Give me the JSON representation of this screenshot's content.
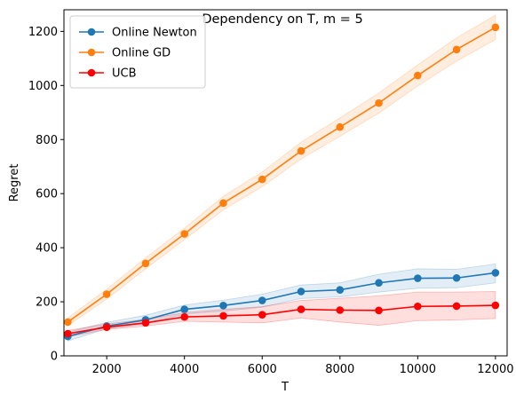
{
  "chart_data": {
    "type": "line",
    "title": "Dependency on T, m = 5",
    "xlabel": "T",
    "ylabel": "Regret",
    "xlim": [
      900,
      12300
    ],
    "ylim": [
      0,
      1280
    ],
    "xticks": [
      2000,
      4000,
      6000,
      8000,
      10000,
      12000
    ],
    "yticks": [
      0,
      200,
      400,
      600,
      800,
      1000,
      1200
    ],
    "x": [
      1000,
      2000,
      3000,
      4000,
      5000,
      6000,
      7000,
      8000,
      9000,
      10000,
      11000,
      12000
    ],
    "legend_position": "upper-left",
    "grid": false,
    "series": [
      {
        "name": "Online Newton",
        "color": "#1f77b4",
        "values": [
          72,
          110,
          133,
          172,
          186,
          205,
          238,
          244,
          270,
          287,
          288,
          307
        ],
        "lower": [
          55,
          100,
          118,
          155,
          165,
          180,
          212,
          218,
          236,
          250,
          252,
          270
        ],
        "upper": [
          88,
          124,
          150,
          188,
          206,
          228,
          262,
          270,
          302,
          322,
          320,
          340
        ]
      },
      {
        "name": "Online GD",
        "color": "#ff7f0e",
        "values": [
          125,
          228,
          342,
          451,
          565,
          653,
          758,
          846,
          935,
          1037,
          1133,
          1215
        ],
        "lower": [
          112,
          210,
          322,
          430,
          540,
          626,
          728,
          812,
          898,
          998,
          1090,
          1170
        ],
        "upper": [
          140,
          246,
          362,
          472,
          590,
          680,
          790,
          880,
          972,
          1076,
          1176,
          1260
        ]
      },
      {
        "name": "UCB",
        "color": "#ff0000",
        "values": [
          82,
          106,
          122,
          144,
          148,
          152,
          172,
          169,
          168,
          183,
          184,
          187
        ],
        "lower": [
          70,
          98,
          110,
          128,
          125,
          122,
          140,
          125,
          113,
          130,
          133,
          138
        ],
        "upper": [
          94,
          118,
          135,
          160,
          172,
          182,
          205,
          213,
          222,
          236,
          236,
          238
        ]
      }
    ]
  }
}
